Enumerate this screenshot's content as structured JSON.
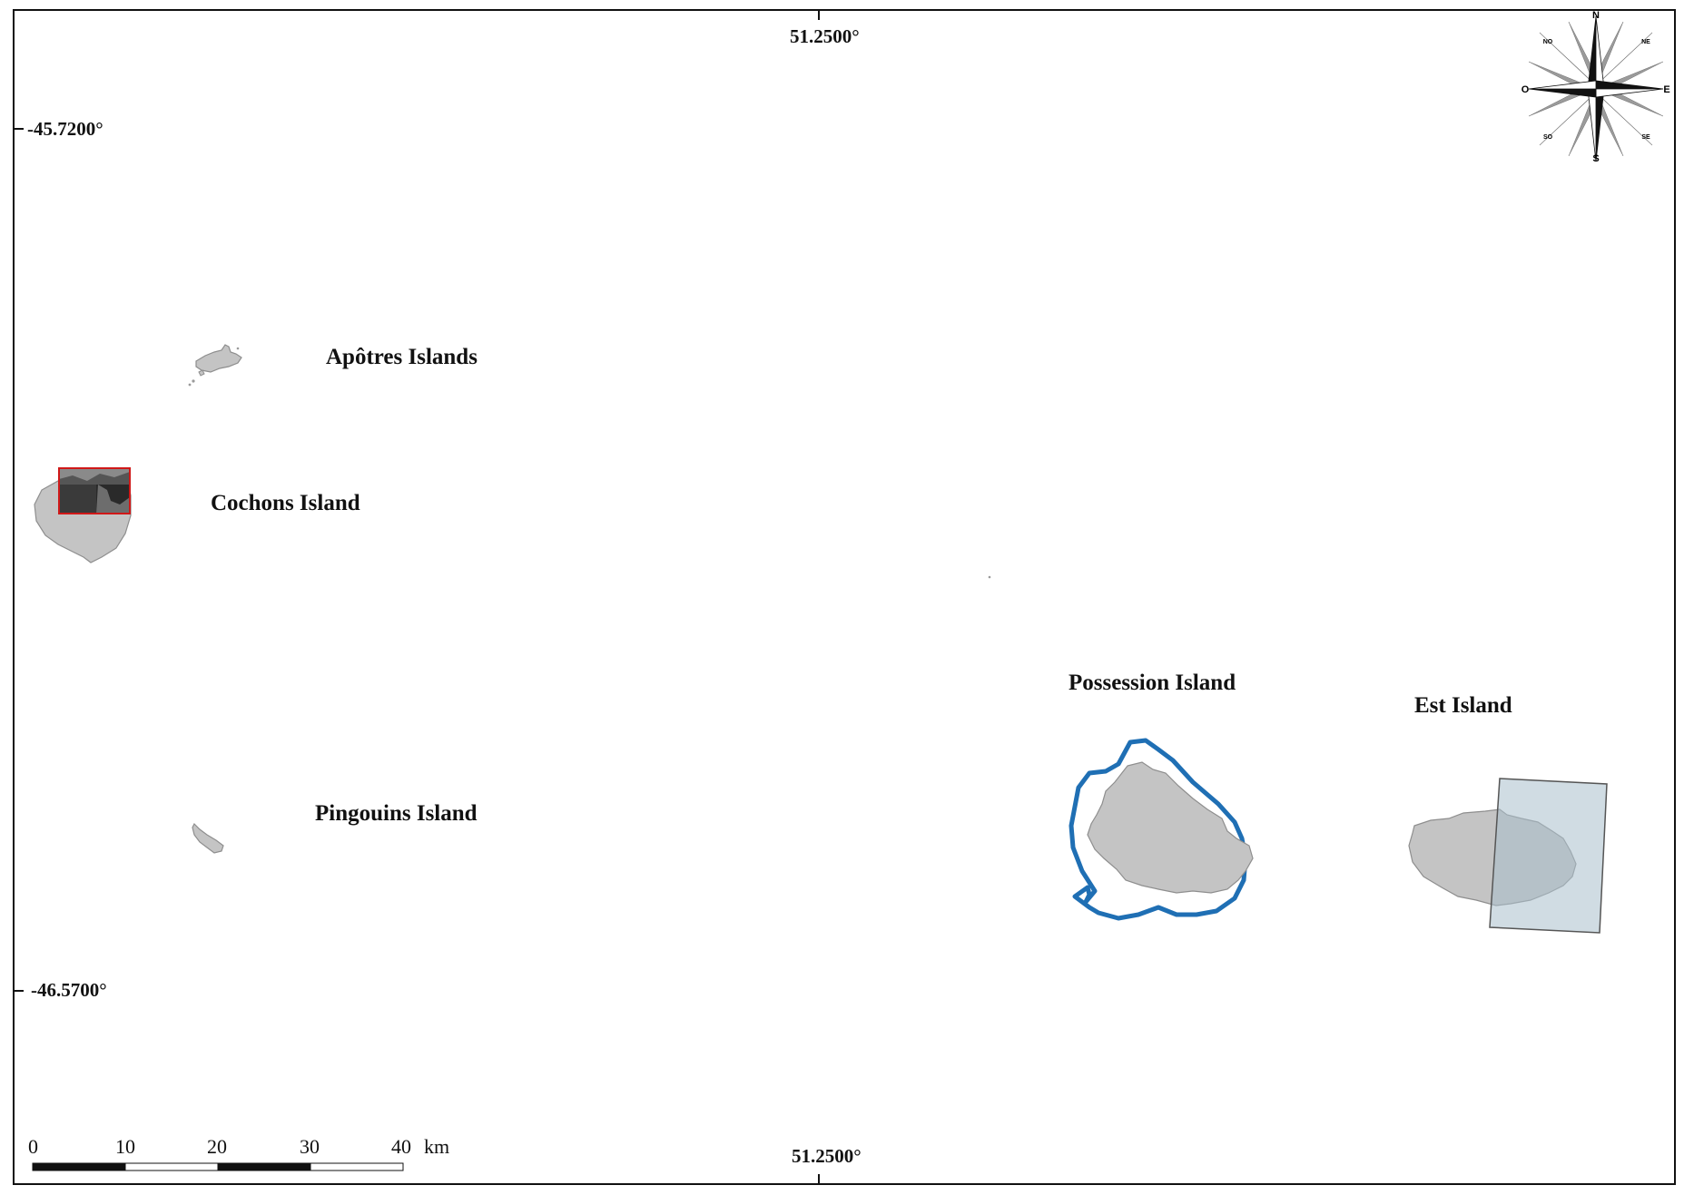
{
  "coordinates": {
    "top_longitude": "51.2500°",
    "bottom_longitude": "51.2500°",
    "upper_latitude": "-45.7200°",
    "lower_latitude": "-46.5700°"
  },
  "islands": {
    "apotres": "Apôtres Islands",
    "cochons": "Cochons Island",
    "pingouins": "Pingouins Island",
    "possession": "Possession Island",
    "est": "Est Island"
  },
  "compass": {
    "north": "N",
    "south": "S",
    "east": "E",
    "west": "O",
    "northwest": "NO",
    "northeast": "NE",
    "southwest": "SO",
    "southeast": "SE"
  },
  "scale_bar": {
    "ticks": [
      "0",
      "10",
      "20",
      "30",
      "40"
    ],
    "unit": "km"
  },
  "colors": {
    "land": "#c4c4c4",
    "land_outline": "#8e8e8e",
    "buffer_outline": "#1f6fb4",
    "footprint_fill": "#a9bfcc",
    "highlight_box": "#d01818"
  }
}
